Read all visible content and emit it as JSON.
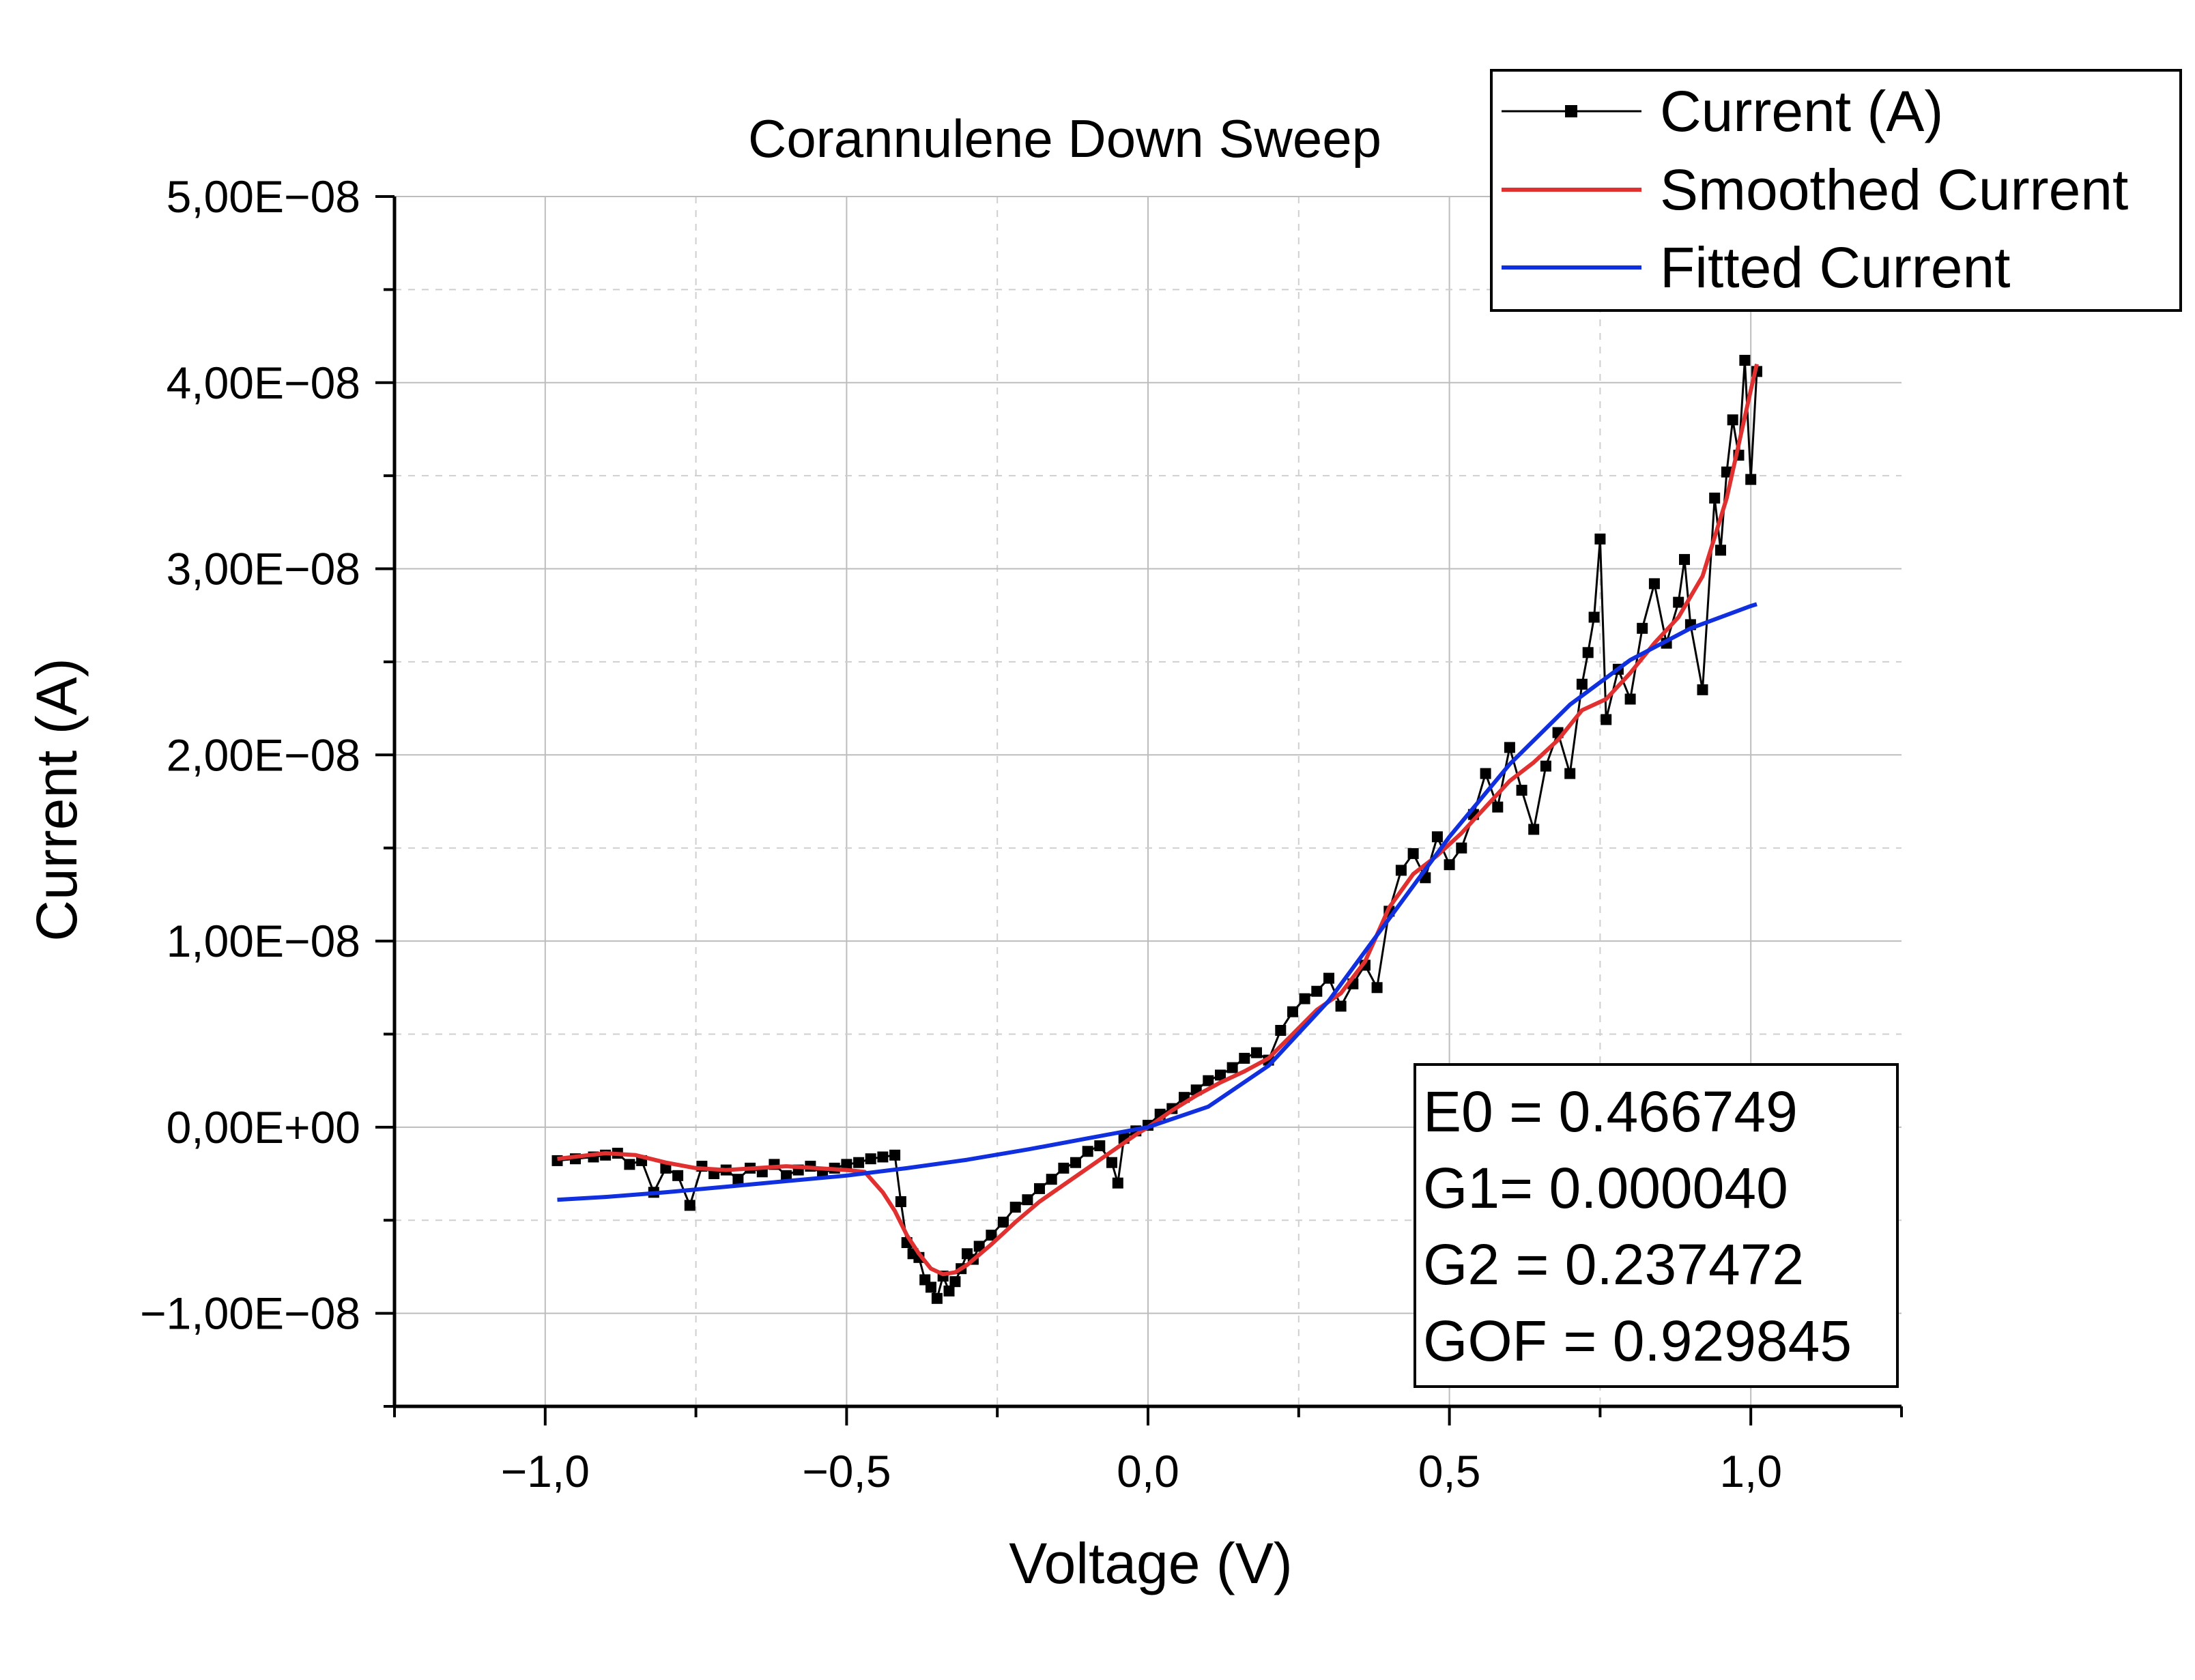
{
  "chart_data": {
    "type": "line",
    "title": "Corannulene Down Sweep",
    "xlabel": "Voltage (V)",
    "ylabel": "Current (A)",
    "xlim": [
      -1.25,
      1.25
    ],
    "ylim": [
      -1.5e-08,
      5e-08
    ],
    "grid": true,
    "legend_position": "top-right",
    "x_ticks": [
      {
        "value": -1.0,
        "label": "−1,0"
      },
      {
        "value": -0.5,
        "label": "−0,5"
      },
      {
        "value": 0.0,
        "label": "0,0"
      },
      {
        "value": 0.5,
        "label": "0,5"
      },
      {
        "value": 1.0,
        "label": "1,0"
      }
    ],
    "y_ticks": [
      {
        "value": -1e-08,
        "label": "−1,00E−08"
      },
      {
        "value": 0.0,
        "label": "0,00E+00"
      },
      {
        "value": 1e-08,
        "label": "1,00E−08"
      },
      {
        "value": 2e-08,
        "label": "2,00E−08"
      },
      {
        "value": 3e-08,
        "label": "3,00E−08"
      },
      {
        "value": 4e-08,
        "label": "4,00E−08"
      },
      {
        "value": 5e-08,
        "label": "5,00E−08"
      }
    ],
    "series": [
      {
        "name": "Current (A)",
        "color": "#000000",
        "style": "line-with-square-markers",
        "x": [
          -0.98,
          -0.95,
          -0.92,
          -0.9,
          -0.88,
          -0.86,
          -0.84,
          -0.82,
          -0.8,
          -0.78,
          -0.76,
          -0.74,
          -0.72,
          -0.7,
          -0.68,
          -0.66,
          -0.64,
          -0.62,
          -0.6,
          -0.58,
          -0.56,
          -0.54,
          -0.52,
          -0.5,
          -0.48,
          -0.46,
          -0.44,
          -0.42,
          -0.41,
          -0.4,
          -0.39,
          -0.38,
          -0.37,
          -0.36,
          -0.35,
          -0.34,
          -0.33,
          -0.32,
          -0.31,
          -0.3,
          -0.29,
          -0.28,
          -0.26,
          -0.24,
          -0.22,
          -0.2,
          -0.18,
          -0.16,
          -0.14,
          -0.12,
          -0.1,
          -0.08,
          -0.06,
          -0.05,
          -0.04,
          -0.02,
          0.0,
          0.02,
          0.04,
          0.06,
          0.08,
          0.1,
          0.12,
          0.14,
          0.16,
          0.18,
          0.2,
          0.22,
          0.24,
          0.26,
          0.28,
          0.3,
          0.32,
          0.34,
          0.36,
          0.38,
          0.4,
          0.42,
          0.44,
          0.46,
          0.48,
          0.5,
          0.52,
          0.54,
          0.56,
          0.58,
          0.6,
          0.62,
          0.64,
          0.66,
          0.68,
          0.7,
          0.72,
          0.73,
          0.74,
          0.75,
          0.76,
          0.78,
          0.8,
          0.82,
          0.84,
          0.86,
          0.88,
          0.89,
          0.9,
          0.92,
          0.94,
          0.95,
          0.96,
          0.97,
          0.98,
          0.99,
          1.0,
          1.01
        ],
        "values": [
          -1.8e-09,
          -1.7e-09,
          -1.6e-09,
          -1.5e-09,
          -1.4e-09,
          -2e-09,
          -1.8e-09,
          -3.5e-09,
          -2.2e-09,
          -2.6e-09,
          -4.2e-09,
          -2.1e-09,
          -2.5e-09,
          -2.3e-09,
          -2.8e-09,
          -2.2e-09,
          -2.4e-09,
          -2e-09,
          -2.6e-09,
          -2.3e-09,
          -2.1e-09,
          -2.5e-09,
          -2.2e-09,
          -2e-09,
          -1.9e-09,
          -1.7e-09,
          -1.6e-09,
          -1.5e-09,
          -4e-09,
          -6.2e-09,
          -6.8e-09,
          -7e-09,
          -8.2e-09,
          -8.6e-09,
          -9.2e-09,
          -8e-09,
          -8.8e-09,
          -8.3e-09,
          -7.6e-09,
          -6.8e-09,
          -7.1e-09,
          -6.4e-09,
          -5.8e-09,
          -5.1e-09,
          -4.3e-09,
          -3.9e-09,
          -3.3e-09,
          -2.8e-09,
          -2.2e-09,
          -1.9e-09,
          -1.3e-09,
          -1e-09,
          -1.9e-09,
          -3e-09,
          -6e-10,
          -2e-10,
          1e-10,
          7e-10,
          1e-09,
          1.6e-09,
          2e-09,
          2.5e-09,
          2.8e-09,
          3.2e-09,
          3.7e-09,
          4e-09,
          3.6e-09,
          5.2e-09,
          6.2e-09,
          6.9e-09,
          7.3e-09,
          8e-09,
          6.5e-09,
          7.7e-09,
          8.7e-09,
          7.5e-09,
          1.16e-08,
          1.38e-08,
          1.47e-08,
          1.34e-08,
          1.56e-08,
          1.41e-08,
          1.5e-08,
          1.68e-08,
          1.9e-08,
          1.72e-08,
          2.04e-08,
          1.81e-08,
          1.6e-08,
          1.94e-08,
          2.12e-08,
          1.9e-08,
          2.38e-08,
          2.55e-08,
          2.74e-08,
          3.16e-08,
          2.19e-08,
          2.46e-08,
          2.3e-08,
          2.68e-08,
          2.92e-08,
          2.6e-08,
          2.82e-08,
          3.05e-08,
          2.7e-08,
          2.35e-08,
          3.38e-08,
          3.1e-08,
          3.52e-08,
          3.8e-08,
          3.61e-08,
          4.12e-08,
          3.48e-08,
          4.06e-08
        ]
      },
      {
        "name": "Smoothed Current",
        "color": "#e03030",
        "style": "line",
        "x": [
          -0.98,
          -0.9,
          -0.85,
          -0.8,
          -0.75,
          -0.7,
          -0.65,
          -0.6,
          -0.55,
          -0.5,
          -0.47,
          -0.44,
          -0.42,
          -0.4,
          -0.38,
          -0.36,
          -0.34,
          -0.32,
          -0.3,
          -0.26,
          -0.22,
          -0.18,
          -0.14,
          -0.1,
          -0.06,
          -0.02,
          0.0,
          0.04,
          0.08,
          0.12,
          0.16,
          0.2,
          0.24,
          0.28,
          0.32,
          0.36,
          0.4,
          0.44,
          0.48,
          0.52,
          0.56,
          0.6,
          0.64,
          0.68,
          0.72,
          0.76,
          0.8,
          0.84,
          0.88,
          0.92,
          0.96,
          1.0,
          1.01
        ],
        "values": [
          -1.7e-09,
          -1.4e-09,
          -1.5e-09,
          -1.9e-09,
          -2.2e-09,
          -2.3e-09,
          -2.2e-09,
          -2.1e-09,
          -2.2e-09,
          -2.3e-09,
          -2.4e-09,
          -3.5e-09,
          -4.5e-09,
          -5.8e-09,
          -6.8e-09,
          -7.6e-09,
          -7.9e-09,
          -7.8e-09,
          -7.4e-09,
          -6.3e-09,
          -5.1e-09,
          -4e-09,
          -3.1e-09,
          -2.2e-09,
          -1.3e-09,
          -4e-10,
          0.0,
          9e-10,
          1.7e-09,
          2.4e-09,
          3e-09,
          3.7e-09,
          5e-09,
          6.3e-09,
          7.2e-09,
          8.9e-09,
          1.18e-08,
          1.36e-08,
          1.46e-08,
          1.58e-08,
          1.72e-08,
          1.86e-08,
          1.96e-08,
          2.08e-08,
          2.24e-08,
          2.3e-08,
          2.44e-08,
          2.6e-08,
          2.74e-08,
          2.96e-08,
          3.38e-08,
          3.96e-08,
          4.1e-08
        ]
      },
      {
        "name": "Fitted Current",
        "color": "#1030e0",
        "style": "line",
        "x": [
          -0.98,
          -0.9,
          -0.8,
          -0.7,
          -0.6,
          -0.5,
          -0.4,
          -0.3,
          -0.2,
          -0.1,
          0.0,
          0.1,
          0.2,
          0.3,
          0.4,
          0.5,
          0.6,
          0.7,
          0.8,
          0.9,
          1.0,
          1.01
        ],
        "values": [
          -3.9e-09,
          -3.75e-09,
          -3.5e-09,
          -3.2e-09,
          -2.9e-09,
          -2.6e-09,
          -2.2e-09,
          -1.75e-09,
          -1.2e-09,
          -6e-10,
          0.0,
          1.1e-09,
          3.3e-09,
          6.8e-09,
          1.12e-08,
          1.56e-08,
          1.95e-08,
          2.27e-08,
          2.51e-08,
          2.68e-08,
          2.8e-08,
          2.81e-08
        ]
      }
    ],
    "annotation": {
      "lines": [
        "E0 = 0.466749",
        "G1= 0.000040",
        "G2 = 0.237472",
        "GOF = 0.929845"
      ]
    }
  }
}
